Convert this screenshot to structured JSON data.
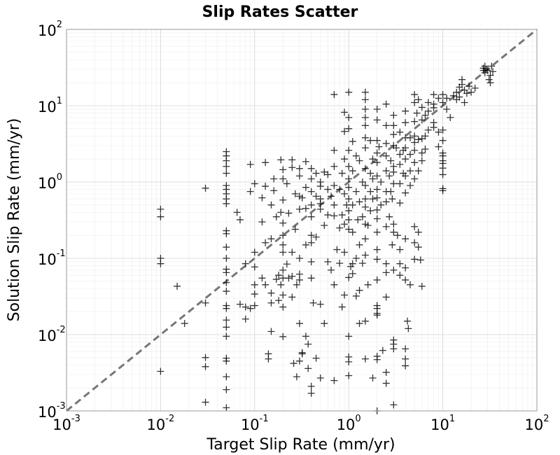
{
  "chart_data": {
    "type": "scatter",
    "title": "Slip Rates Scatter",
    "xlabel": "Target Slip Rate (mm/yr)",
    "ylabel": "Solution Slip Rate (mm/yr)",
    "xscale": "log",
    "yscale": "log",
    "xlim": [
      0.001,
      100
    ],
    "ylim": [
      0.001,
      100
    ],
    "grid": true,
    "marker": "+",
    "marker_color": "#000000",
    "reference_line": {
      "type": "y=x",
      "style": "dashed",
      "color": "#777777"
    },
    "x_ticks": [
      {
        "base": "10",
        "exp": "-3"
      },
      {
        "base": "10",
        "exp": "-2"
      },
      {
        "base": "10",
        "exp": "-1"
      },
      {
        "base": "10",
        "exp": "0"
      },
      {
        "base": "10",
        "exp": "1"
      },
      {
        "base": "10",
        "exp": "2"
      }
    ],
    "y_ticks": [
      {
        "base": "10",
        "exp": "-3"
      },
      {
        "base": "10",
        "exp": "-2"
      },
      {
        "base": "10",
        "exp": "-1"
      },
      {
        "base": "10",
        "exp": "0"
      },
      {
        "base": "10",
        "exp": "1"
      },
      {
        "base": "10",
        "exp": "2"
      }
    ],
    "points": [
      [
        0.01,
        0.44
      ],
      [
        0.01,
        0.35
      ],
      [
        0.01,
        0.1
      ],
      [
        0.01,
        0.085
      ],
      [
        0.01,
        0.0033
      ],
      [
        0.015,
        0.043
      ],
      [
        0.018,
        0.014
      ],
      [
        0.03,
        0.83
      ],
      [
        0.03,
        0.026
      ],
      [
        0.03,
        0.005
      ],
      [
        0.03,
        0.0038
      ],
      [
        0.03,
        0.0013
      ],
      [
        0.05,
        2.5
      ],
      [
        0.05,
        2.2
      ],
      [
        0.05,
        1.9
      ],
      [
        0.05,
        1.6
      ],
      [
        0.05,
        1.3
      ],
      [
        0.05,
        0.9
      ],
      [
        0.05,
        0.8
      ],
      [
        0.05,
        0.7
      ],
      [
        0.05,
        0.6
      ],
      [
        0.05,
        0.52
      ],
      [
        0.05,
        0.23
      ],
      [
        0.05,
        0.21
      ],
      [
        0.05,
        0.14
      ],
      [
        0.05,
        0.1
      ],
      [
        0.05,
        0.072
      ],
      [
        0.05,
        0.065
      ],
      [
        0.05,
        0.048
      ],
      [
        0.05,
        0.037
      ],
      [
        0.05,
        0.024
      ],
      [
        0.05,
        0.022
      ],
      [
        0.05,
        0.0155
      ],
      [
        0.05,
        0.0125
      ],
      [
        0.05,
        0.0095
      ],
      [
        0.05,
        0.0049
      ],
      [
        0.05,
        0.0045
      ],
      [
        0.05,
        0.0028
      ],
      [
        0.05,
        0.0019
      ],
      [
        0.05,
        0.0011
      ],
      [
        0.065,
        0.4
      ],
      [
        0.07,
        0.32
      ],
      [
        0.07,
        0.025
      ],
      [
        0.08,
        0.085
      ],
      [
        0.08,
        0.023
      ],
      [
        0.08,
        0.016
      ],
      [
        0.09,
        1.7
      ],
      [
        0.09,
        0.75
      ],
      [
        0.09,
        0.022
      ],
      [
        0.1,
        0.95
      ],
      [
        0.1,
        0.12
      ],
      [
        0.1,
        0.077
      ],
      [
        0.1,
        0.045
      ],
      [
        0.1,
        0.034
      ],
      [
        0.1,
        0.024
      ],
      [
        0.12,
        0.62
      ],
      [
        0.12,
        0.3
      ],
      [
        0.12,
        0.055
      ],
      [
        0.13,
        1.8
      ],
      [
        0.13,
        0.88
      ],
      [
        0.13,
        0.045
      ],
      [
        0.13,
        0.16
      ],
      [
        0.14,
        0.0056
      ],
      [
        0.14,
        0.0048
      ],
      [
        0.15,
        0.5
      ],
      [
        0.15,
        0.18
      ],
      [
        0.15,
        0.035
      ],
      [
        0.15,
        0.026
      ],
      [
        0.15,
        0.011
      ],
      [
        0.16,
        1.1
      ],
      [
        0.16,
        0.77
      ],
      [
        0.17,
        0.35
      ],
      [
        0.17,
        0.053
      ],
      [
        0.18,
        0.06
      ],
      [
        0.18,
        0.028
      ],
      [
        0.19,
        1.95
      ],
      [
        0.19,
        0.4
      ],
      [
        0.19,
        0.045
      ],
      [
        0.2,
        1.45
      ],
      [
        0.2,
        1.1
      ],
      [
        0.2,
        0.58
      ],
      [
        0.2,
        0.29
      ],
      [
        0.2,
        0.2
      ],
      [
        0.2,
        0.15
      ],
      [
        0.2,
        0.12
      ],
      [
        0.2,
        0.07
      ],
      [
        0.2,
        0.055
      ],
      [
        0.2,
        0.033
      ],
      [
        0.2,
        0.023
      ],
      [
        0.2,
        0.0094
      ],
      [
        0.22,
        0.95
      ],
      [
        0.22,
        0.084
      ],
      [
        0.23,
        0.39
      ],
      [
        0.23,
        0.055
      ],
      [
        0.25,
        1.95
      ],
      [
        0.25,
        1.55
      ],
      [
        0.25,
        0.12
      ],
      [
        0.25,
        0.058
      ],
      [
        0.25,
        0.031
      ],
      [
        0.26,
        0.0042
      ],
      [
        0.27,
        0.7
      ],
      [
        0.27,
        0.24
      ],
      [
        0.28,
        0.0028
      ],
      [
        0.28,
        0.045
      ],
      [
        0.3,
        1.5
      ],
      [
        0.3,
        1.2
      ],
      [
        0.3,
        0.65
      ],
      [
        0.3,
        0.44
      ],
      [
        0.3,
        0.1
      ],
      [
        0.3,
        0.062
      ],
      [
        0.3,
        0.052
      ],
      [
        0.3,
        0.014
      ],
      [
        0.3,
        0.0045
      ],
      [
        0.32,
        0.62
      ],
      [
        0.32,
        0.0056
      ],
      [
        0.32,
        0.0058
      ],
      [
        0.35,
        1.85
      ],
      [
        0.35,
        0.85
      ],
      [
        0.35,
        0.45
      ],
      [
        0.35,
        0.15
      ],
      [
        0.35,
        0.0095
      ],
      [
        0.37,
        0.0075
      ],
      [
        0.37,
        0.0036
      ],
      [
        0.4,
        1.5
      ],
      [
        0.4,
        1.1
      ],
      [
        0.4,
        0.75
      ],
      [
        0.4,
        0.5
      ],
      [
        0.4,
        0.35
      ],
      [
        0.4,
        0.2
      ],
      [
        0.4,
        0.16
      ],
      [
        0.4,
        0.09
      ],
      [
        0.4,
        0.055
      ],
      [
        0.4,
        0.0021
      ],
      [
        0.4,
        0.0017
      ],
      [
        0.42,
        0.026
      ],
      [
        0.45,
        1.3
      ],
      [
        0.45,
        0.65
      ],
      [
        0.45,
        0.19
      ],
      [
        0.45,
        0.0049
      ],
      [
        0.5,
        1.0
      ],
      [
        0.5,
        0.88
      ],
      [
        0.5,
        0.6
      ],
      [
        0.5,
        0.52
      ],
      [
        0.5,
        0.44
      ],
      [
        0.5,
        0.025
      ],
      [
        0.5,
        0.0027
      ],
      [
        0.55,
        1.35
      ],
      [
        0.55,
        0.27
      ],
      [
        0.55,
        0.014
      ],
      [
        0.6,
        1.25
      ],
      [
        0.6,
        0.8
      ],
      [
        0.6,
        0.37
      ],
      [
        0.6,
        0.09
      ],
      [
        0.65,
        0.65
      ],
      [
        0.65,
        0.07
      ],
      [
        0.7,
        14
      ],
      [
        0.7,
        2.6
      ],
      [
        0.7,
        1.6
      ],
      [
        0.7,
        0.9
      ],
      [
        0.7,
        0.5
      ],
      [
        0.7,
        0.36
      ],
      [
        0.7,
        0.045
      ],
      [
        0.7,
        0.0025
      ],
      [
        0.75,
        0.13
      ],
      [
        0.8,
        0.8
      ],
      [
        0.8,
        0.25
      ],
      [
        0.8,
        0.086
      ],
      [
        0.85,
        1.3
      ],
      [
        0.85,
        0.37
      ],
      [
        0.85,
        0.023
      ],
      [
        0.9,
        8.2
      ],
      [
        0.9,
        4.6
      ],
      [
        0.9,
        2.0
      ],
      [
        0.9,
        0.7
      ],
      [
        0.9,
        0.28
      ],
      [
        0.9,
        0.12
      ],
      [
        0.9,
        0.033
      ],
      [
        0.95,
        0.5
      ],
      [
        1.0,
        15
      ],
      [
        1.0,
        7
      ],
      [
        1.0,
        5
      ],
      [
        1.0,
        2.6
      ],
      [
        1.0,
        1.6
      ],
      [
        1.0,
        1.1
      ],
      [
        1.0,
        0.85
      ],
      [
        1.0,
        0.6
      ],
      [
        1.0,
        0.42
      ],
      [
        1.0,
        0.32
      ],
      [
        1.0,
        0.24
      ],
      [
        1.0,
        0.056
      ],
      [
        1.0,
        0.0095
      ],
      [
        1.0,
        0.0051
      ],
      [
        1.0,
        0.0044
      ],
      [
        1.0,
        0.0029
      ],
      [
        1.05,
        0.078
      ],
      [
        1.1,
        3.4
      ],
      [
        1.1,
        1.4
      ],
      [
        1.1,
        0.5
      ],
      [
        1.1,
        0.22
      ],
      [
        1.1,
        0.085
      ],
      [
        1.1,
        0.063
      ],
      [
        1.2,
        2.2
      ],
      [
        1.2,
        0.75
      ],
      [
        1.2,
        0.1
      ],
      [
        1.2,
        0.032
      ],
      [
        1.25,
        0.32
      ],
      [
        1.3,
        1.9
      ],
      [
        1.3,
        0.55
      ],
      [
        1.3,
        0.15
      ],
      [
        1.3,
        0.038
      ],
      [
        1.3,
        0.014
      ],
      [
        1.4,
        1.0
      ],
      [
        1.4,
        0.35
      ],
      [
        1.4,
        0.086
      ],
      [
        1.5,
        15
      ],
      [
        1.5,
        12
      ],
      [
        1.5,
        9
      ],
      [
        1.5,
        7
      ],
      [
        1.5,
        5.5
      ],
      [
        1.5,
        3.8
      ],
      [
        1.5,
        2.8
      ],
      [
        1.5,
        1.5
      ],
      [
        1.5,
        0.9
      ],
      [
        1.5,
        0.6
      ],
      [
        1.5,
        0.47
      ],
      [
        1.5,
        0.28
      ],
      [
        1.5,
        0.18
      ],
      [
        1.5,
        0.11
      ],
      [
        1.5,
        0.015
      ],
      [
        1.5,
        0.0048
      ],
      [
        1.6,
        0.27
      ],
      [
        1.6,
        0.045
      ],
      [
        1.7,
        3.5
      ],
      [
        1.7,
        1.3
      ],
      [
        1.7,
        0.75
      ],
      [
        1.7,
        0.42
      ],
      [
        1.8,
        2.0
      ],
      [
        1.8,
        1.1
      ],
      [
        1.8,
        0.6
      ],
      [
        1.8,
        0.0027
      ],
      [
        2.0,
        9
      ],
      [
        2.0,
        6.5
      ],
      [
        2.0,
        3.5
      ],
      [
        2.0,
        2.4
      ],
      [
        2.0,
        1.8
      ],
      [
        2.0,
        1.2
      ],
      [
        2.0,
        0.8
      ],
      [
        2.0,
        0.62
      ],
      [
        2.0,
        0.43
      ],
      [
        2.0,
        0.33
      ],
      [
        2.0,
        0.22
      ],
      [
        2.0,
        0.13
      ],
      [
        2.0,
        0.097
      ],
      [
        2.0,
        0.052
      ],
      [
        2.0,
        0.024
      ],
      [
        2.0,
        0.022
      ],
      [
        2.0,
        0.019
      ],
      [
        2.0,
        0.018
      ],
      [
        2.0,
        0.0052
      ],
      [
        2.0,
        0.0047
      ],
      [
        2.0,
        0.001
      ],
      [
        2.1,
        2.9
      ],
      [
        2.2,
        1.0
      ],
      [
        2.2,
        0.5
      ],
      [
        2.3,
        0.0062
      ],
      [
        2.5,
        10.5
      ],
      [
        2.5,
        5.5
      ],
      [
        2.5,
        3.2
      ],
      [
        2.5,
        2.2
      ],
      [
        2.5,
        1.4
      ],
      [
        2.5,
        0.75
      ],
      [
        2.5,
        0.55
      ],
      [
        2.5,
        0.26
      ],
      [
        2.5,
        0.085
      ],
      [
        2.5,
        0.065
      ],
      [
        2.5,
        0.031
      ],
      [
        2.5,
        0.0032
      ],
      [
        2.5,
        0.0023
      ],
      [
        2.7,
        1.2
      ],
      [
        2.7,
        0.35
      ],
      [
        2.8,
        1.9
      ],
      [
        2.8,
        0.75
      ],
      [
        2.9,
        0.6
      ],
      [
        2.9,
        0.15
      ],
      [
        3.0,
        7.5
      ],
      [
        3.0,
        5.5
      ],
      [
        3.0,
        4.2
      ],
      [
        3.0,
        3.0
      ],
      [
        3.0,
        1.6
      ],
      [
        3.0,
        1.35
      ],
      [
        3.0,
        0.95
      ],
      [
        3.0,
        0.28
      ],
      [
        3.0,
        0.22
      ],
      [
        3.0,
        0.07
      ],
      [
        3.0,
        0.0085
      ],
      [
        3.0,
        0.0075
      ],
      [
        3.0,
        0.0065
      ],
      [
        3.0,
        0.0012
      ],
      [
        3.2,
        2.8
      ],
      [
        3.3,
        0.2
      ],
      [
        3.5,
        4.5
      ],
      [
        3.5,
        2.3
      ],
      [
        3.5,
        1.7
      ],
      [
        3.5,
        0.95
      ],
      [
        3.5,
        0.53
      ],
      [
        3.5,
        0.13
      ],
      [
        3.5,
        0.085
      ],
      [
        3.5,
        0.06
      ],
      [
        3.8,
        2.6
      ],
      [
        3.8,
        1.3
      ],
      [
        4.0,
        8.5
      ],
      [
        4.0,
        6.0
      ],
      [
        4.0,
        3.8
      ],
      [
        4.0,
        2.8
      ],
      [
        4.0,
        2.0
      ],
      [
        4.0,
        1.2
      ],
      [
        4.0,
        0.72
      ],
      [
        4.0,
        0.18
      ],
      [
        4.0,
        0.075
      ],
      [
        4.0,
        0.052
      ],
      [
        4.0,
        0.0065
      ],
      [
        4.0,
        0.0048
      ],
      [
        4.0,
        0.0039
      ],
      [
        4.2,
        0.015
      ],
      [
        4.3,
        0.012
      ],
      [
        4.5,
        3.8
      ],
      [
        4.5,
        2.3
      ],
      [
        4.5,
        1.4
      ],
      [
        4.5,
        0.9
      ],
      [
        4.5,
        0.045
      ],
      [
        5.0,
        14
      ],
      [
        5.0,
        11
      ],
      [
        5.0,
        6.2
      ],
      [
        5.0,
        4.0
      ],
      [
        5.0,
        3.3
      ],
      [
        5.0,
        2.6
      ],
      [
        5.0,
        1.8
      ],
      [
        5.0,
        1.1
      ],
      [
        5.0,
        0.26
      ],
      [
        5.0,
        0.16
      ],
      [
        5.0,
        0.097
      ],
      [
        5.3,
        8
      ],
      [
        5.5,
        12
      ],
      [
        5.5,
        3.6
      ],
      [
        5.5,
        1.4
      ],
      [
        5.5,
        0.22
      ],
      [
        5.5,
        0.14
      ],
      [
        5.8,
        0.095
      ],
      [
        6.0,
        9.5
      ],
      [
        6.0,
        6.5
      ],
      [
        6.0,
        3.7
      ],
      [
        6.0,
        2.4
      ],
      [
        6.0,
        1.9
      ],
      [
        6.0,
        0.043
      ],
      [
        6.5,
        7.5
      ],
      [
        6.5,
        4.0
      ],
      [
        6.5,
        2.7
      ],
      [
        7.0,
        11
      ],
      [
        7.0,
        8.5
      ],
      [
        7.0,
        4.8
      ],
      [
        8.0,
        14
      ],
      [
        8.0,
        10.5
      ],
      [
        8.0,
        9.4
      ],
      [
        8.0,
        6.0
      ],
      [
        8.0,
        5.2
      ],
      [
        9.0,
        12.5
      ],
      [
        9.0,
        4.5
      ],
      [
        9.0,
        2.9
      ],
      [
        10.0,
        14
      ],
      [
        10.0,
        11
      ],
      [
        10.0,
        4.8
      ],
      [
        10.0,
        3.5
      ],
      [
        10.0,
        2.4
      ],
      [
        10.0,
        2.2
      ],
      [
        10.0,
        1.9
      ],
      [
        10.0,
        1.75
      ],
      [
        10.0,
        1.52
      ],
      [
        10.0,
        1.25
      ],
      [
        10.0,
        0.82
      ],
      [
        10.0,
        0.77
      ],
      [
        11.0,
        12.5
      ],
      [
        11.0,
        9
      ],
      [
        12.0,
        7
      ],
      [
        13.0,
        13.5
      ],
      [
        14.0,
        15
      ],
      [
        14.0,
        12
      ],
      [
        15.0,
        17.5
      ],
      [
        15.0,
        13
      ],
      [
        16.0,
        22
      ],
      [
        16.0,
        19
      ],
      [
        17.0,
        16
      ],
      [
        17.0,
        11
      ],
      [
        18.0,
        14.5
      ],
      [
        19.0,
        18
      ],
      [
        20.0,
        15
      ],
      [
        22.0,
        17
      ],
      [
        27.0,
        31
      ],
      [
        27.0,
        29
      ],
      [
        28.0,
        27
      ],
      [
        28.0,
        33
      ],
      [
        29.0,
        30
      ],
      [
        30.0,
        29
      ],
      [
        31.0,
        22
      ],
      [
        32.0,
        25
      ],
      [
        32.0,
        20
      ],
      [
        33.0,
        33
      ],
      [
        34.0,
        28
      ]
    ]
  }
}
